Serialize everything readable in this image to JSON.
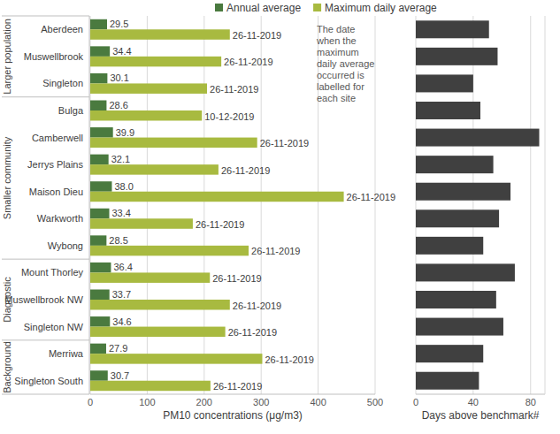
{
  "chart_data": [
    {
      "type": "bar",
      "orientation": "horizontal",
      "legend": "top",
      "grid": true,
      "x_label": "PM10 concentrations (μg/m3)",
      "annotation": "The date when the maximum daily average occurred is labelled for each site",
      "categories": [
        "Aberdeen",
        "Muswellbrook",
        "Singleton",
        "Bulga",
        "Camberwell",
        "Jerrys Plains",
        "Maison Dieu",
        "Warkworth",
        "Wybong",
        "Mount Thorley",
        "Muswellbrook NW",
        "Singleton NW",
        "Merriwa",
        "Singleton South"
      ],
      "groups": [
        "Larger population",
        "Larger population",
        "Larger population",
        "Smaller community",
        "Smaller community",
        "Smaller community",
        "Smaller community",
        "Smaller community",
        "Smaller community",
        "Diagnostic",
        "Diagnostic",
        "Diagnostic",
        "Background",
        "Background"
      ],
      "series": [
        {
          "name": "Annual average",
          "color": "#4a7a3f",
          "data_labels": true,
          "values": [
            29.5,
            34.4,
            30.1,
            28.6,
            39.9,
            32.1,
            38.0,
            33.4,
            28.5,
            36.4,
            33.7,
            34.6,
            27.9,
            30.7
          ],
          "value_labels": [
            "29.5",
            "34.4",
            "30.1",
            "28.6",
            "39.9",
            "32.1",
            "38.0",
            "33.4",
            "28.5",
            "36.4",
            "33.7",
            "34.6",
            "27.9",
            "30.7"
          ]
        },
        {
          "name": "Maximum daily average",
          "color": "#a8ba40",
          "values": [
            245,
            230,
            205,
            196,
            293,
            225,
            445,
            180,
            278,
            210,
            245,
            237,
            302,
            211
          ],
          "dates": [
            "26-11-2019",
            "26-11-2019",
            "26-11-2019",
            "10-12-2019",
            "26-11-2019",
            "26-11-2019",
            "26-11-2019",
            "26-11-2019",
            "26-11-2019",
            "26-11-2019",
            "26-11-2019",
            "26-11-2019",
            "26-11-2019",
            "26-11-2019"
          ]
        }
      ],
      "xlim": [
        0,
        500
      ],
      "xticks": [
        0,
        100,
        200,
        300,
        400,
        500
      ]
    },
    {
      "type": "bar",
      "orientation": "horizontal",
      "grid": true,
      "tick_labels": "x",
      "x_label": "Days above  benchmark#",
      "categories": [
        "Aberdeen",
        "Muswellbrook",
        "Singleton",
        "Bulga",
        "Camberwell",
        "Jerrys Plains",
        "Maison Dieu",
        "Warkworth",
        "Wybong",
        "Mount Thorley",
        "Muswellbrook NW",
        "Singleton NW",
        "Merriwa",
        "Singleton South"
      ],
      "series": [
        {
          "name": "Days above benchmark",
          "color": "#404040",
          "values": [
            51,
            57,
            40,
            45,
            86,
            54,
            66,
            58,
            47,
            69,
            56,
            61,
            47,
            44
          ]
        }
      ],
      "xlim": [
        0,
        90
      ],
      "xticks": [
        0,
        40,
        80
      ]
    }
  ]
}
